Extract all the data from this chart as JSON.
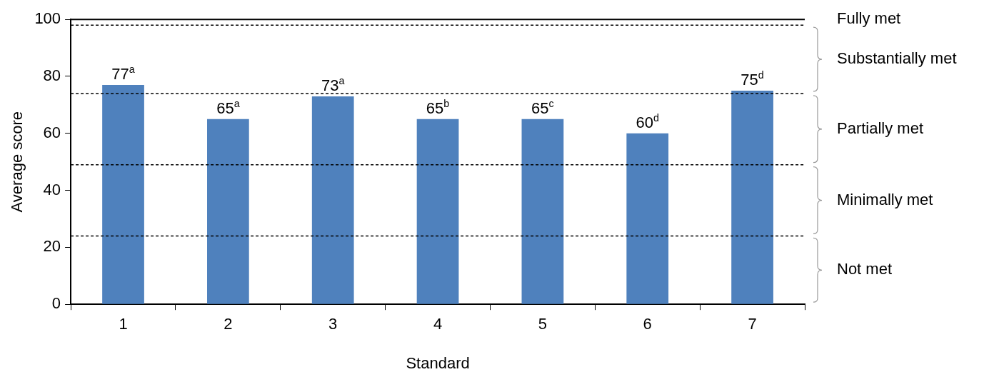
{
  "chart_data": {
    "type": "bar",
    "xlabel": "Standard",
    "ylabel": "Average score",
    "categories": [
      "1",
      "2",
      "3",
      "4",
      "5",
      "6",
      "7"
    ],
    "values": [
      77,
      65,
      73,
      65,
      65,
      60,
      75
    ],
    "value_labels": [
      "77$^{a}$",
      "65$^{a}$",
      "73$^{a}$",
      "65$^{b}$",
      "65$^{c}$",
      "60$^{d}$",
      "75$^{d}$"
    ],
    "color": "#4f81bd",
    "ylim": [
      0,
      100
    ],
    "yticks": [
      0,
      20,
      40,
      60,
      80,
      100
    ],
    "grid": false,
    "legend": false,
    "annotations": [
      "Not met",
      "Minimally met",
      "Partially met",
      "Substantially met"
    ],
    "ref_lines": [
      {
        "axis": "y",
        "value": 24,
        "line_style": "dashed"
      },
      {
        "axis": "y",
        "value": 49,
        "line_style": "dashed"
      },
      {
        "axis": "y",
        "value": 74,
        "line_style": "dashed"
      },
      {
        "axis": "y",
        "value": 98,
        "line_style": "dashed"
      },
      {
        "axis": "y",
        "value": 100,
        "label": "Fully met",
        "line_style": "solid"
      }
    ]
  }
}
